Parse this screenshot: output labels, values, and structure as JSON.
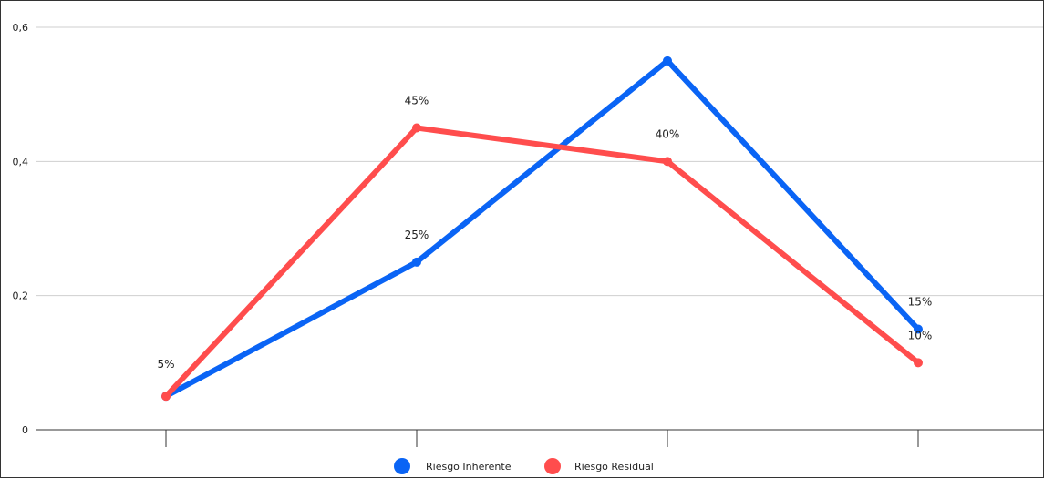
{
  "chart_data": {
    "type": "line",
    "title": "",
    "xlabel": "",
    "ylabel": "",
    "categories": [
      "",
      "",
      "",
      ""
    ],
    "ylim": [
      0,
      0.6
    ],
    "y_ticks": [
      0,
      0.2,
      0.4,
      0.6
    ],
    "y_tick_labels": [
      "0",
      "0,2",
      "0,4",
      "0,6"
    ],
    "grid": true,
    "legend_position": "bottom-center",
    "series": [
      {
        "name": "Riesgo Inherente",
        "color": "#0a64f5",
        "values": [
          0.05,
          0.25,
          0.55,
          0.15
        ],
        "labels": [
          "",
          "25%",
          "",
          "15%"
        ]
      },
      {
        "name": "Riesgo Residual",
        "color": "#ff4d4d",
        "values": [
          0.05,
          0.45,
          0.4,
          0.1
        ],
        "labels": [
          "5%",
          "45%",
          "40%",
          "10%"
        ]
      }
    ]
  }
}
